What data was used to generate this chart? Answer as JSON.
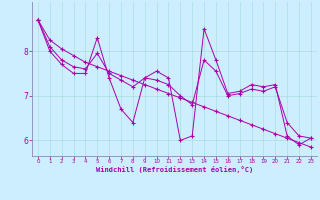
{
  "xlabel": "Windchill (Refroidissement éolien,°C)",
  "background_color": "#cceeff",
  "line_color": "#aa00aa",
  "marker": "+",
  "markersize": 3,
  "linewidth": 0.7,
  "ylim": [
    5.65,
    9.1
  ],
  "xlim": [
    -0.5,
    23.5
  ],
  "yticks": [
    6,
    7,
    8
  ],
  "xticks": [
    0,
    1,
    2,
    3,
    4,
    5,
    6,
    7,
    8,
    9,
    10,
    11,
    12,
    13,
    14,
    15,
    16,
    17,
    18,
    19,
    20,
    21,
    22,
    23
  ],
  "grid_color": "#aadddd",
  "series": [
    [
      8.7,
      8.0,
      7.7,
      7.5,
      7.5,
      8.3,
      7.4,
      6.7,
      6.4,
      7.4,
      7.55,
      7.4,
      6.0,
      6.1,
      8.5,
      7.8,
      7.05,
      7.1,
      7.25,
      7.2,
      7.25,
      6.1,
      5.9,
      6.05
    ],
    [
      8.7,
      8.25,
      8.05,
      7.9,
      7.75,
      7.65,
      7.55,
      7.45,
      7.35,
      7.25,
      7.15,
      7.05,
      6.95,
      6.85,
      6.75,
      6.65,
      6.55,
      6.45,
      6.35,
      6.25,
      6.15,
      6.05,
      5.95,
      5.85
    ],
    [
      8.7,
      8.1,
      7.8,
      7.65,
      7.6,
      7.95,
      7.5,
      7.35,
      7.2,
      7.4,
      7.35,
      7.25,
      7.0,
      6.8,
      7.8,
      7.55,
      7.0,
      7.05,
      7.15,
      7.1,
      7.2,
      6.4,
      6.1,
      6.05
    ]
  ]
}
